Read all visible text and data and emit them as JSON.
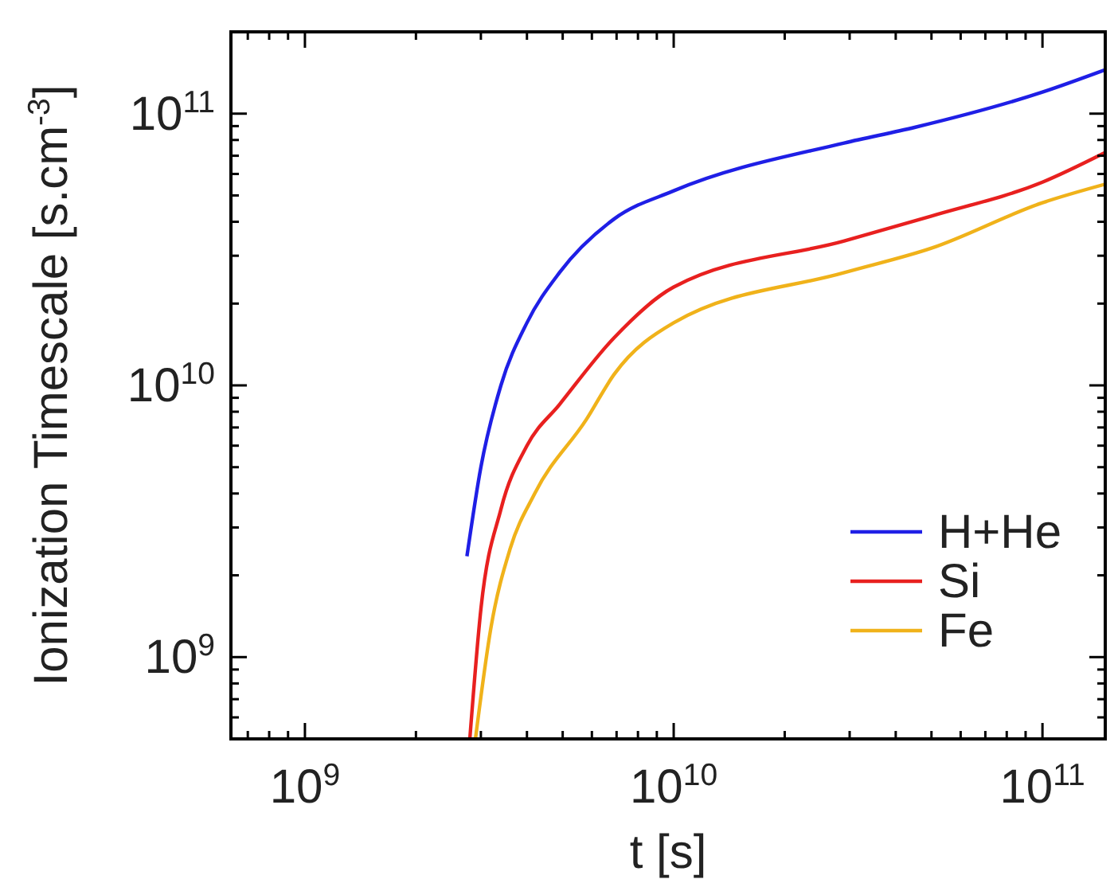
{
  "chart_data": {
    "type": "line",
    "xlabel": "t [s]",
    "ylabel": "Ionization Timescale [s.cm$^{-3}$]",
    "log": "xy",
    "legend": "bottom right",
    "grid": false,
    "line_style": "solid",
    "xlim": [
      630000000.0,
      148000000000.0
    ],
    "ylim": [
      500000000.0,
      200000000000.0
    ],
    "xticks": [
      {
        "value": 700000000.0,
        "label": null
      },
      {
        "value": 800000000.0,
        "label": null
      },
      {
        "value": 900000000.0,
        "label": null
      },
      {
        "value": 1000000000.0,
        "label": "10$^{9}$"
      },
      {
        "value": 2000000000.0,
        "label": null
      },
      {
        "value": 3000000000.0,
        "label": null
      },
      {
        "value": 4000000000.0,
        "label": null
      },
      {
        "value": 5000000000.0,
        "label": null
      },
      {
        "value": 6000000000.0,
        "label": null
      },
      {
        "value": 7000000000.0,
        "label": null
      },
      {
        "value": 8000000000.0,
        "label": null
      },
      {
        "value": 9000000000.0,
        "label": null
      },
      {
        "value": 10000000000.0,
        "label": "10$^{10}$"
      },
      {
        "value": 20000000000.0,
        "label": null
      },
      {
        "value": 30000000000.0,
        "label": null
      },
      {
        "value": 40000000000.0,
        "label": null
      },
      {
        "value": 50000000000.0,
        "label": null
      },
      {
        "value": 60000000000.0,
        "label": null
      },
      {
        "value": 70000000000.0,
        "label": null
      },
      {
        "value": 80000000000.0,
        "label": null
      },
      {
        "value": 90000000000.0,
        "label": null
      },
      {
        "value": 100000000000.0,
        "label": "10$^{11}$"
      }
    ],
    "yticks": [
      {
        "value": 600000000.0,
        "label": null
      },
      {
        "value": 700000000.0,
        "label": null
      },
      {
        "value": 800000000.0,
        "label": null
      },
      {
        "value": 900000000.0,
        "label": null
      },
      {
        "value": 1000000000.0,
        "label": "10$^{9}$"
      },
      {
        "value": 2000000000.0,
        "label": null
      },
      {
        "value": 3000000000.0,
        "label": null
      },
      {
        "value": 4000000000.0,
        "label": null
      },
      {
        "value": 5000000000.0,
        "label": null
      },
      {
        "value": 6000000000.0,
        "label": null
      },
      {
        "value": 7000000000.0,
        "label": null
      },
      {
        "value": 8000000000.0,
        "label": null
      },
      {
        "value": 9000000000.0,
        "label": null
      },
      {
        "value": 10000000000.0,
        "label": "10$^{10}$"
      },
      {
        "value": 20000000000.0,
        "label": null
      },
      {
        "value": 30000000000.0,
        "label": null
      },
      {
        "value": 40000000000.0,
        "label": null
      },
      {
        "value": 50000000000.0,
        "label": null
      },
      {
        "value": 60000000000.0,
        "label": null
      },
      {
        "value": 70000000000.0,
        "label": null
      },
      {
        "value": 80000000000.0,
        "label": null
      },
      {
        "value": 90000000000.0,
        "label": null
      },
      {
        "value": 100000000000.0,
        "label": "10$^{11}$"
      },
      {
        "value": 200000000000.0,
        "label": null
      }
    ],
    "series": [
      {
        "name": "H+He",
        "color": "#1f1fe6",
        "x": [
          2750000000.0,
          3000000000.0,
          3400000000.0,
          4000000000.0,
          4900000000.0,
          6900000000.0,
          10000000000.0,
          29000000000.0,
          45000000000.0,
          100000000000.0,
          148000000000.0
        ],
        "values": [
          2350000000.0,
          5000000000.0,
          10000000000.0,
          17000000000.0,
          26000000000.0,
          41000000000.0,
          52000000000.0,
          78000000000.0,
          89000000000.0,
          120000000000.0,
          145000000000.0
        ]
      },
      {
        "name": "Si",
        "color": "#e8201f",
        "x": [
          2800000000.0,
          3000000000.0,
          3400000000.0,
          4000000000.0,
          4900000000.0,
          6900000000.0,
          10000000000.0,
          29000000000.0,
          50000000000.0,
          100000000000.0,
          148000000000.0
        ],
        "values": [
          500000000.0,
          1500000000.0,
          3500000000.0,
          6000000000.0,
          8500000000.0,
          15000000000.0,
          23000000000.0,
          34000000000.0,
          42000000000.0,
          56000000000.0,
          72000000000.0
        ]
      },
      {
        "name": "Fe",
        "color": "#f0b21a",
        "x": [
          2900000000.0,
          3200000000.0,
          3600000000.0,
          4200000000.0,
          5800000000.0,
          6900000000.0,
          10000000000.0,
          29000000000.0,
          50000000000.0,
          100000000000.0,
          148000000000.0
        ],
        "values": [
          500000000.0,
          1300000000.0,
          2500000000.0,
          4000000000.0,
          7500000000.0,
          11000000000.0,
          17000000000.0,
          26000000000.0,
          32000000000.0,
          47000000000.0,
          55000000000.0
        ]
      }
    ]
  }
}
